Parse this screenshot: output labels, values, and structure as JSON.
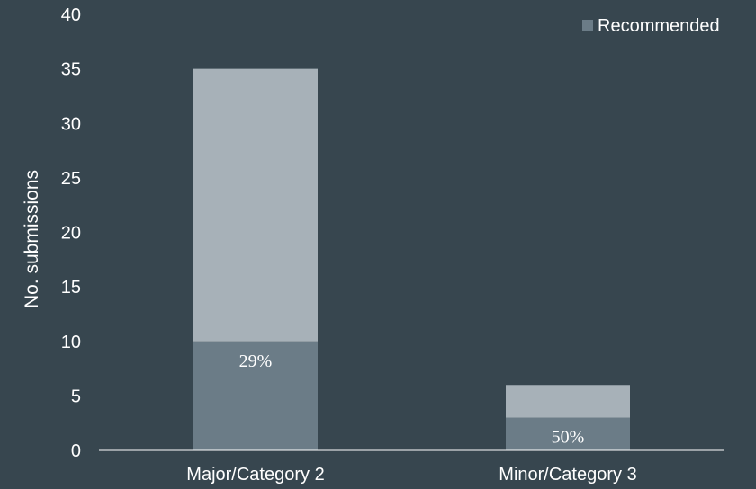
{
  "chart_data": {
    "type": "bar",
    "stacked": true,
    "categories": [
      "Major/Category 2",
      "Minor/Category 3"
    ],
    "series": [
      {
        "name": "Recommended",
        "values": [
          10,
          3
        ],
        "color": "#6b7c87"
      },
      {
        "name": "",
        "values": [
          25,
          3
        ],
        "color": "#a7b1b8"
      }
    ],
    "totals": [
      35,
      6
    ],
    "percent_labels": [
      "29%",
      "50%"
    ],
    "ylabel": "No. submissions",
    "xlabel": "",
    "ylim": [
      0,
      40
    ],
    "yticks": [
      0,
      5,
      10,
      15,
      20,
      25,
      30,
      35,
      40
    ],
    "grid": false,
    "legend": {
      "position": "top-right",
      "entries": [
        "Recommended"
      ]
    },
    "colors": {
      "background": "#37464f",
      "axis": "#ffffff",
      "text": "#ffffff"
    }
  }
}
